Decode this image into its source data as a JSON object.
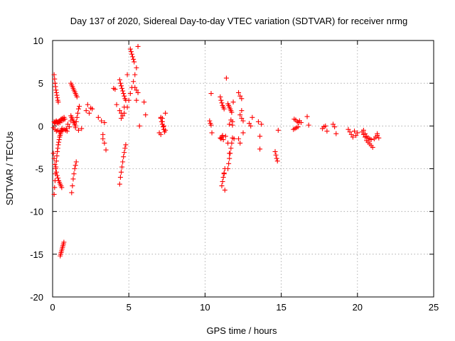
{
  "chart_data": {
    "type": "scatter",
    "title": "Day 137 of 2020, Sidereal Day-to-day VTEC variation (SDTVAR) for receiver nrmg",
    "xlabel": "GPS time / hours",
    "ylabel": "SDTVAR / TECUs",
    "xlim": [
      0,
      25
    ],
    "ylim": [
      -20,
      10
    ],
    "xticks": [
      0,
      5,
      10,
      15,
      20,
      25
    ],
    "xtick_labels": [
      "0",
      "5",
      "10",
      "15",
      "20",
      "25"
    ],
    "yticks": [
      -20,
      -15,
      -10,
      -5,
      0,
      5,
      10
    ],
    "ytick_labels": [
      "-20",
      "-15",
      "-10",
      "-5",
      "0",
      "5",
      "10"
    ],
    "grid": true,
    "marker": "+",
    "color": "#ff0000",
    "series": [
      {
        "name": "nrmg",
        "x": [
          0.1,
          0.13,
          0.16,
          0.19,
          0.22,
          0.25,
          0.28,
          0.31,
          0.34,
          0.37,
          0.1,
          0.13,
          0.16,
          0.2,
          0.24,
          0.28,
          0.32,
          0.36,
          0.4,
          0.44,
          0.48,
          0.52,
          0.56,
          0.6,
          0.65,
          0.7,
          0.75,
          0.8,
          0.05,
          0.15,
          0.25,
          0.35,
          0.45,
          0.55,
          0.65,
          0.75,
          0.85,
          0.95,
          0.1,
          0.13,
          0.16,
          0.19,
          0.22,
          0.25,
          0.28,
          0.31,
          0.34,
          0.37,
          0.4,
          0.43,
          0.46,
          0.49,
          0.52,
          0.55,
          0.58,
          0.61,
          0.05,
          0.1,
          0.15,
          0.2,
          0.25,
          0.3,
          0.35,
          0.4,
          0.45,
          0.5,
          0.55,
          0.6,
          0.5,
          0.53,
          0.56,
          0.59,
          0.62,
          0.65,
          0.68,
          0.71,
          0.74,
          1.2,
          1.25,
          1.3,
          1.35,
          1.4,
          1.45,
          1.5,
          1.55,
          1.6,
          1.25,
          1.3,
          1.35,
          1.4,
          1.45,
          1.5,
          1.55,
          1.2,
          1.25,
          1.3,
          1.35,
          1.4,
          1.45,
          1.5,
          1.55,
          1.6,
          1.65,
          1.7,
          1.75,
          0.9,
          1.0,
          1.1,
          1.2,
          1.5,
          1.7,
          1.9,
          2.3,
          2.5,
          2.2,
          2.4,
          2.6,
          3.0,
          3.2,
          3.4,
          3.3,
          3.4,
          3.5,
          3.3,
          4.0,
          4.1,
          4.2,
          4.4,
          4.5,
          4.6,
          4.7,
          4.4,
          4.45,
          4.5,
          4.55,
          4.6,
          4.65,
          4.7,
          4.75,
          4.8,
          4.9,
          4.4,
          4.45,
          4.5,
          4.55,
          4.6,
          4.65,
          4.7,
          4.75,
          4.8,
          4.5,
          4.7,
          4.9,
          5.0,
          5.1,
          5.2,
          5.3,
          5.4,
          5.5,
          5.6,
          5.1,
          5.15,
          5.2,
          5.25,
          5.3,
          5.35,
          5.4,
          5.5,
          5.6,
          5.7,
          5.5,
          6.0,
          6.1,
          7.1,
          7.15,
          7.2,
          7.25,
          7.3,
          7.35,
          7.4,
          7.1,
          7.2,
          7.3,
          7.4,
          7.0,
          7.1,
          7.2,
          10.3,
          10.35,
          10.4,
          10.45,
          10.4,
          11.0,
          11.05,
          11.1,
          11.15,
          11.2,
          11.25,
          11.3,
          11.1,
          11.15,
          11.2,
          11.25,
          11.3,
          11.35,
          11.0,
          11.05,
          11.1,
          11.15,
          11.2,
          11.25,
          11.5,
          11.55,
          11.6,
          11.65,
          11.7,
          11.75,
          11.8,
          11.85,
          11.5,
          11.55,
          11.6,
          11.65,
          11.7,
          11.75,
          11.8,
          11.6,
          11.7,
          11.8,
          11.9,
          11.5,
          11.6,
          11.4,
          12.2,
          12.3,
          12.4,
          12.5,
          12.2,
          12.3,
          12.4,
          12.3,
          12.4,
          12.5,
          12.9,
          13.0,
          13.1,
          13.5,
          13.6,
          13.7,
          13.6,
          14.6,
          14.65,
          14.7,
          14.75,
          14.8,
          15.8,
          15.9,
          16.0,
          16.1,
          16.2,
          15.85,
          15.95,
          16.05,
          16.15,
          16.3,
          16.7,
          16.8,
          17.7,
          17.8,
          17.9,
          18.0,
          18.4,
          18.5,
          18.6,
          19.4,
          19.5,
          19.6,
          19.7,
          19.8,
          19.9,
          20.0,
          20.3,
          20.4,
          20.5,
          20.6,
          20.7,
          20.8,
          20.9,
          21.0,
          20.4,
          20.5,
          20.6,
          20.7,
          20.8,
          20.9,
          21.1,
          21.2,
          21.3,
          21.4,
          21.3
        ],
        "y": [
          6.0,
          5.5,
          5.0,
          4.6,
          4.2,
          3.9,
          3.6,
          3.3,
          3.0,
          2.8,
          0.5,
          0.4,
          0.3,
          0.5,
          0.6,
          0.4,
          0.5,
          0.3,
          0.5,
          0.6,
          0.4,
          0.7,
          0.8,
          0.6,
          0.9,
          0.7,
          1.0,
          0.8,
          -0.2,
          -0.4,
          -0.6,
          -0.5,
          -0.7,
          -0.6,
          -0.5,
          -0.4,
          -0.5,
          -0.6,
          -8.0,
          -7.2,
          -6.4,
          -5.6,
          -4.8,
          -4.1,
          -3.5,
          -3.0,
          -2.6,
          -2.2,
          -1.9,
          -1.6,
          -1.3,
          -1.1,
          -0.9,
          -0.7,
          -0.5,
          -0.3,
          -3.2,
          -3.8,
          -4.5,
          -5.0,
          -5.4,
          -5.8,
          -6.1,
          -6.4,
          -6.6,
          -6.8,
          -7.0,
          -7.2,
          -15.2,
          -15.0,
          -14.8,
          -14.6,
          -14.4,
          -14.2,
          -14.0,
          -13.8,
          -13.6,
          5.0,
          4.8,
          4.6,
          4.4,
          4.2,
          4.0,
          3.8,
          3.6,
          3.4,
          -7.8,
          -7.0,
          -6.2,
          -5.6,
          -5.0,
          -4.6,
          -4.2,
          1.2,
          1.0,
          0.8,
          0.6,
          0.4,
          0.2,
          0.0,
          0.5,
          1.0,
          1.5,
          2.0,
          2.3,
          -0.3,
          0.2,
          -0.1,
          0.6,
          -0.2,
          -0.5,
          -0.3,
          2.5,
          2.1,
          1.8,
          1.5,
          2.0,
          1.0,
          0.6,
          0.4,
          -1.0,
          -2.0,
          -2.8,
          -1.5,
          4.4,
          4.3,
          2.5,
          1.8,
          1.5,
          1.2,
          2.2,
          -6.8,
          -6.0,
          -5.4,
          -4.8,
          -4.2,
          -3.6,
          -3.1,
          -2.6,
          -2.2,
          6.0,
          5.4,
          5.0,
          4.7,
          4.4,
          4.1,
          3.8,
          3.5,
          3.2,
          3.0,
          0.9,
          1.5,
          2.2,
          3.0,
          3.8,
          4.5,
          5.2,
          6.0,
          6.8,
          9.3,
          9.0,
          8.7,
          8.4,
          8.1,
          7.8,
          7.5,
          4.5,
          4.2,
          3.9,
          0.0,
          3.0,
          2.8,
          1.3,
          0.9,
          0.5,
          0.2,
          -0.1,
          -0.4,
          -0.7,
          1.5,
          1.0,
          0.5,
          0.0,
          -0.5,
          -0.8,
          -1.0,
          0.9,
          0.6,
          0.3,
          0.1,
          -0.8,
          3.8,
          3.4,
          3.0,
          2.7,
          2.4,
          2.2,
          2.0,
          -7.5,
          -7.0,
          -6.5,
          -6.0,
          -5.5,
          -5.0,
          -1.2,
          -1.4,
          -1.5,
          -1.3,
          -1.1,
          -1.6,
          -5.6,
          -5.0,
          -4.4,
          -3.8,
          -3.2,
          -2.6,
          -2.0,
          -1.4,
          2.8,
          2.6,
          2.4,
          2.2,
          2.0,
          1.8,
          1.6,
          0.5,
          0.2,
          0.7,
          0.1,
          -1.5,
          -2.0,
          -3.2,
          5.6,
          3.9,
          3.5,
          3.2,
          -0.8,
          -1.5,
          -2.0,
          1.8,
          1.3,
          0.9,
          0.6,
          0.3,
          0.0,
          1.0,
          0.5,
          -1.2,
          0.2,
          -2.7,
          -3.0,
          -3.4,
          -3.8,
          -4.1,
          -0.5,
          -0.4,
          -0.3,
          -0.2,
          -0.1,
          0.6,
          0.8,
          0.7,
          0.5,
          0.4,
          0.4,
          1.1,
          0.1,
          -0.3,
          -0.1,
          0.0,
          -0.6,
          0.2,
          -0.1,
          -0.9,
          -0.4,
          -0.7,
          -1.0,
          -1.3,
          -0.6,
          -1.1,
          -0.8,
          -0.7,
          -1.0,
          -1.3,
          -1.7,
          -1.9,
          -2.1,
          -2.3,
          -2.5,
          -0.5,
          -0.9,
          -1.2,
          -1.4,
          -1.5,
          -1.6,
          -1.5,
          -1.3,
          -1.1,
          -1.4,
          -0.9
        ]
      }
    ]
  }
}
